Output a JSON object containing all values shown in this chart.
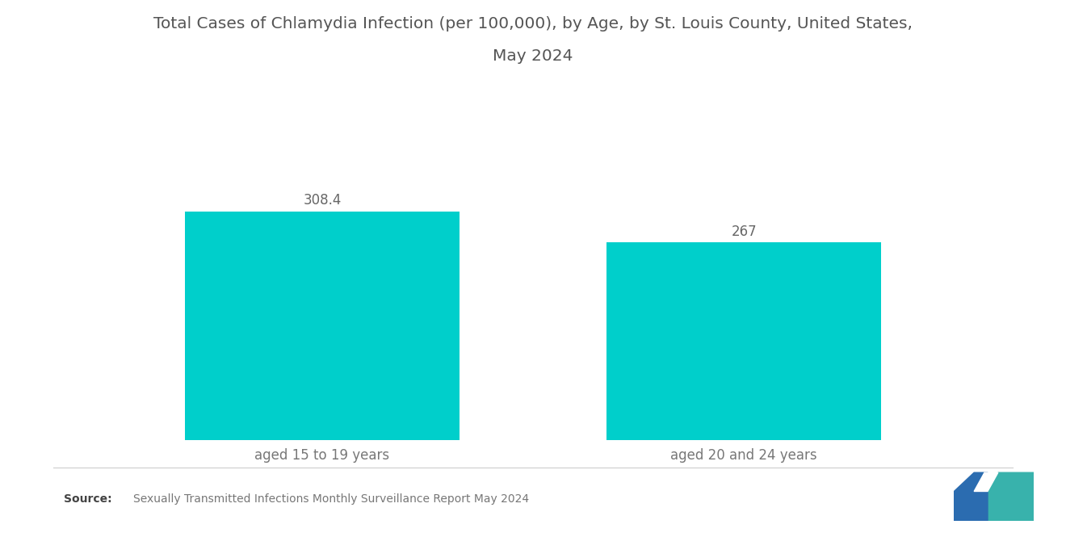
{
  "title_line1": "Total Cases of Chlamydia Infection (per 100,000), by Age, by St. Louis County, United States,",
  "title_line2": "May 2024",
  "categories": [
    "aged 15 to 19 years",
    "aged 20 and 24 years"
  ],
  "values": [
    308.4,
    267
  ],
  "value_labels": [
    "308.4",
    "267"
  ],
  "bar_color": "#00CFCB",
  "background_color": "#ffffff",
  "title_fontsize": 14.5,
  "label_fontsize": 12,
  "value_fontsize": 12,
  "source_text": "Sexually Transmitted Infections Monthly Surveillance Report May 2024",
  "source_label": "Source:",
  "ylim": [
    0,
    420
  ],
  "logo_blue": "#2B6CB0",
  "logo_teal": "#38B2AC"
}
